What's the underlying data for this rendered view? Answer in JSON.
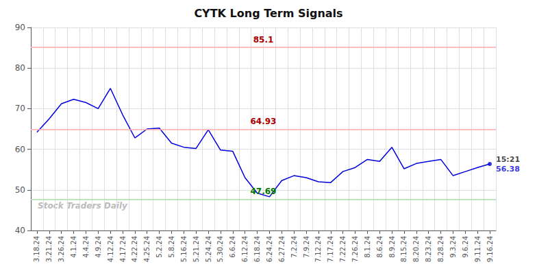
{
  "chart_data": {
    "type": "line",
    "title": "CYTK Long Term Signals",
    "categories": [
      "3.18.24",
      "3.21.24",
      "3.26.24",
      "4.1.24",
      "4.4.24",
      "4.9.24",
      "4.12.24",
      "4.17.24",
      "4.22.24",
      "4.25.24",
      "5.2.24",
      "5.8.24",
      "5.16.24",
      "5.21.24",
      "5.24.24",
      "5.30.24",
      "6.6.24",
      "6.12.24",
      "6.18.24",
      "6.24.24",
      "6.27.24",
      "7.2.24",
      "7.9.24",
      "7.12.24",
      "7.17.24",
      "7.22.24",
      "7.26.24",
      "8.1.24",
      "8.6.24",
      "8.9.24",
      "8.15.24",
      "8.20.24",
      "8.23.24",
      "8.28.24",
      "9.3.24",
      "9.6.24",
      "9.11.24",
      "9.16.24"
    ],
    "values": [
      64.2,
      67.5,
      71.2,
      72.3,
      71.5,
      70.0,
      75.0,
      68.5,
      62.8,
      65.0,
      65.2,
      61.5,
      60.5,
      60.2,
      64.8,
      59.8,
      59.5,
      53.0,
      49.2,
      48.3,
      52.3,
      53.5,
      53.0,
      52.0,
      51.8,
      54.5,
      55.5,
      57.5,
      57.0,
      60.5,
      55.2,
      56.5,
      57.0,
      57.5,
      53.5,
      54.5,
      55.5,
      56.38
    ],
    "color": "#0000dd",
    "reference_lines": [
      {
        "value": 85.1,
        "color": "#ffaaaa",
        "label_color": "#aa0000"
      },
      {
        "value": 64.93,
        "color": "#ffaaaa",
        "label_color": "#aa0000"
      },
      {
        "value": 47.69,
        "color": "#aaddaa",
        "label_color": "#007700"
      }
    ],
    "endpoint": {
      "label": "15:21",
      "value_label": "56.38",
      "color": "#0000dd"
    },
    "watermark": "Stock Traders Daily",
    "ylim": [
      40,
      90
    ],
    "yticks": [
      40,
      50,
      60,
      70,
      80,
      90
    ],
    "grid": true
  }
}
